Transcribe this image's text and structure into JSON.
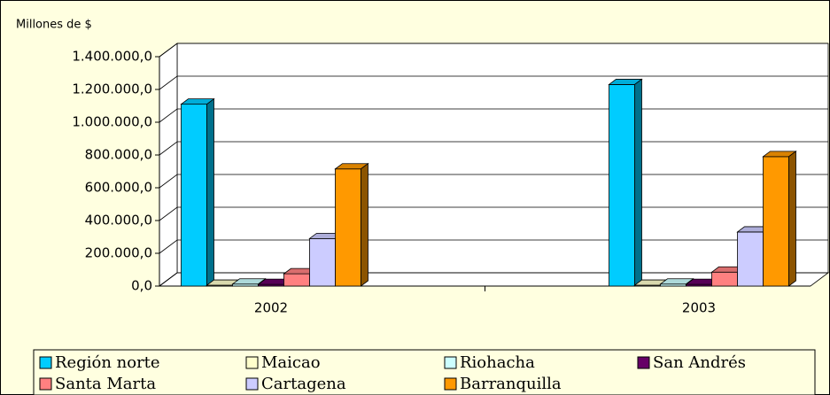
{
  "chart_data": {
    "type": "bar3d",
    "title": "Millones de $",
    "categories": [
      "2002",
      "2003"
    ],
    "series": [
      {
        "name": "Región norte",
        "color": "#00ccff",
        "values": [
          1110000,
          1230000
        ]
      },
      {
        "name": "Maicao",
        "color": "#ffffcc",
        "values": [
          5000,
          5000
        ]
      },
      {
        "name": "Riohacha",
        "color": "#ccffff",
        "values": [
          12000,
          12000
        ]
      },
      {
        "name": "San Andrés",
        "color": "#660066",
        "values": [
          10000,
          10000
        ]
      },
      {
        "name": "Santa Marta",
        "color": "#ff8080",
        "values": [
          75000,
          85000
        ]
      },
      {
        "name": "Cartagena",
        "color": "#ccccff",
        "values": [
          290000,
          330000
        ]
      },
      {
        "name": "Barranquilla",
        "color": "#ff9900",
        "values": [
          715000,
          790000
        ]
      }
    ],
    "ylim": [
      0,
      1400000
    ],
    "yticks": [
      {
        "value": 0,
        "label": "0,0"
      },
      {
        "value": 200000,
        "label": "200.000,0"
      },
      {
        "value": 400000,
        "label": "400.000,0"
      },
      {
        "value": 600000,
        "label": "600.000,0"
      },
      {
        "value": 800000,
        "label": "800.000,0"
      },
      {
        "value": 1000000,
        "label": "1.000.000,0"
      },
      {
        "value": 1200000,
        "label": "1.200.000,0"
      },
      {
        "value": 1400000,
        "label": "1.400.000,0"
      }
    ],
    "grid": true
  }
}
